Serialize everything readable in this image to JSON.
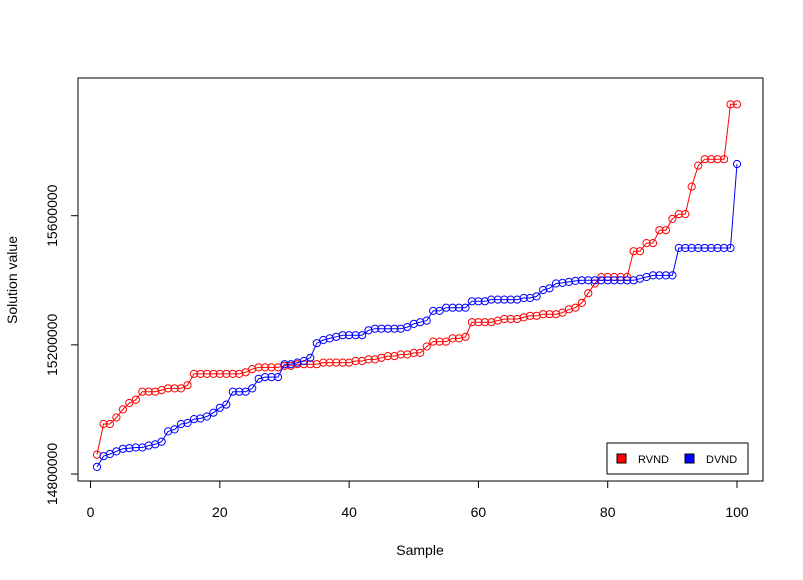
{
  "chart_data": {
    "type": "line",
    "title": "",
    "xlabel": "Sample",
    "ylabel": "Solution value",
    "xlim": [
      1,
      100
    ],
    "ylim": [
      14800000,
      15980000
    ],
    "x_ticks": [
      0,
      20,
      40,
      60,
      80,
      100
    ],
    "y_ticks": [
      14800000,
      15200000,
      15600000
    ],
    "x_tick_labels": [
      "0",
      "20",
      "40",
      "60",
      "80",
      "100"
    ],
    "y_tick_labels": [
      "14800000",
      "15200000",
      "15600000"
    ],
    "grid": false,
    "legend_position": "bottom-right",
    "x": [
      1,
      2,
      3,
      4,
      5,
      6,
      7,
      8,
      9,
      10,
      11,
      12,
      13,
      14,
      15,
      16,
      17,
      18,
      19,
      20,
      21,
      22,
      23,
      24,
      25,
      26,
      27,
      28,
      29,
      30,
      31,
      32,
      33,
      34,
      35,
      36,
      37,
      38,
      39,
      40,
      41,
      42,
      43,
      44,
      45,
      46,
      47,
      48,
      49,
      50,
      51,
      52,
      53,
      54,
      55,
      56,
      57,
      58,
      59,
      60,
      61,
      62,
      63,
      64,
      65,
      66,
      67,
      68,
      69,
      70,
      71,
      72,
      73,
      74,
      75,
      76,
      77,
      78,
      79,
      80,
      81,
      82,
      83,
      84,
      85,
      86,
      87,
      88,
      89,
      90,
      91,
      92,
      93,
      94,
      95,
      96,
      97,
      98,
      99,
      100
    ],
    "series": [
      {
        "name": "RVND",
        "color": "#ff0000",
        "values": [
          14860000,
          14955000,
          14955000,
          14975000,
          15000000,
          15020000,
          15030000,
          15055000,
          15055000,
          15055000,
          15060000,
          15065000,
          15065000,
          15065000,
          15075000,
          15110000,
          15110000,
          15110000,
          15110000,
          15110000,
          15110000,
          15110000,
          15110000,
          15115000,
          15125000,
          15130000,
          15130000,
          15130000,
          15130000,
          15135000,
          15135000,
          15140000,
          15140000,
          15140000,
          15140000,
          15145000,
          15145000,
          15145000,
          15145000,
          15145000,
          15150000,
          15150000,
          15155000,
          15155000,
          15160000,
          15165000,
          15165000,
          15170000,
          15170000,
          15175000,
          15175000,
          15195000,
          15210000,
          15210000,
          15210000,
          15220000,
          15220000,
          15225000,
          15270000,
          15270000,
          15270000,
          15270000,
          15275000,
          15280000,
          15280000,
          15280000,
          15285000,
          15290000,
          15290000,
          15295000,
          15295000,
          15295000,
          15300000,
          15310000,
          15315000,
          15330000,
          15360000,
          15390000,
          15410000,
          15410000,
          15410000,
          15410000,
          15410000,
          15490000,
          15490000,
          15515000,
          15515000,
          15555000,
          15555000,
          15590000,
          15605000,
          15605000,
          15690000,
          15755000,
          15775000,
          15775000,
          15775000,
          15775000,
          15945000,
          15945000
        ]
      },
      {
        "name": "DVND",
        "color": "#0000ff",
        "values": [
          14822000,
          14855000,
          14862000,
          14870000,
          14878000,
          14880000,
          14882000,
          14882000,
          14888000,
          14892000,
          14900000,
          14932000,
          14938000,
          14955000,
          14958000,
          14970000,
          14972000,
          14978000,
          14990000,
          15005000,
          15015000,
          15055000,
          15055000,
          15055000,
          15065000,
          15095000,
          15100000,
          15100000,
          15100000,
          15140000,
          15140000,
          15145000,
          15150000,
          15160000,
          15205000,
          15215000,
          15220000,
          15225000,
          15230000,
          15230000,
          15230000,
          15230000,
          15245000,
          15250000,
          15250000,
          15250000,
          15250000,
          15250000,
          15255000,
          15265000,
          15270000,
          15275000,
          15305000,
          15305000,
          15315000,
          15315000,
          15315000,
          15315000,
          15335000,
          15335000,
          15335000,
          15340000,
          15340000,
          15340000,
          15340000,
          15340000,
          15345000,
          15345000,
          15350000,
          15370000,
          15375000,
          15390000,
          15392000,
          15395000,
          15398000,
          15400000,
          15400000,
          15400000,
          15400000,
          15400000,
          15400000,
          15400000,
          15400000,
          15400000,
          15405000,
          15410000,
          15415000,
          15415000,
          15415000,
          15415000,
          15500000,
          15500000,
          15500000,
          15500000,
          15500000,
          15500000,
          15500000,
          15500000,
          15500000,
          15760000
        ]
      }
    ]
  }
}
